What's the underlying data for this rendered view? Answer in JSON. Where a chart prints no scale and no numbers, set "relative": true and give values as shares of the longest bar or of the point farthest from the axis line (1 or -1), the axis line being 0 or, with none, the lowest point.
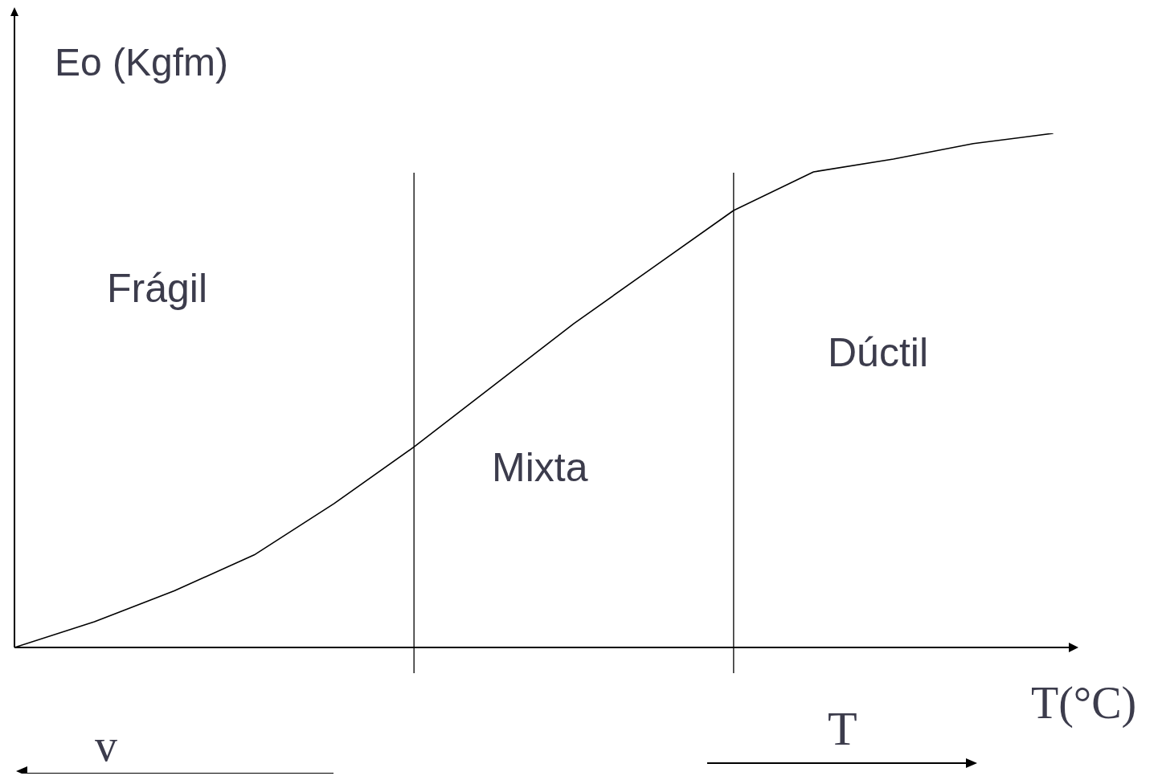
{
  "chart_data": {
    "type": "line",
    "relative": true,
    "xlabel": "T(°C)",
    "ylabel": "Eo (Kgfm)",
    "categories": [
      null,
      null,
      null,
      null,
      null,
      null,
      null,
      null,
      null,
      null,
      null,
      null,
      null,
      null
    ],
    "series": [
      {
        "color": "#000000",
        "values": [
          0,
          0.05,
          0.11,
          0.18,
          0.28,
          0.39,
          0.51,
          0.63,
          0.74,
          0.85,
          0.925,
          0.95,
          0.98,
          1.0
        ]
      }
    ],
    "annotations": [
      "Frágil",
      "Mixta",
      "Dúctil",
      "v",
      "T"
    ],
    "marker": "none",
    "line_style": "solid"
  }
}
